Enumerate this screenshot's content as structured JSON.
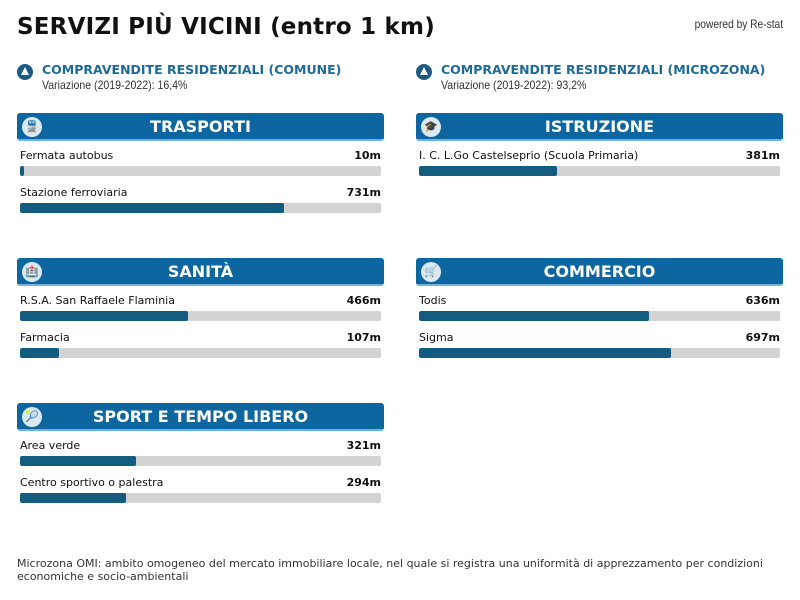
{
  "title": "SERVIZI PIÙ VICINI (entro 1 km)",
  "powered_by": "powered by Re-stat",
  "stats": [
    {
      "title": "COMPRAVENDITE RESIDENZIALI (COMUNE)",
      "value": "Variazione (2019-2022): 16,4%",
      "icon": "triangle-up-icon"
    },
    {
      "title": "COMPRAVENDITE RESIDENZIALI (MICROZONA)",
      "value": "Variazione (2019-2022): 93,2%",
      "icon": "triangle-up-icon"
    }
  ],
  "max_distance_m": 1000,
  "colors": {
    "header": "#0e66a0",
    "bar": "#145b80",
    "track": "#d3d3d3",
    "accent_text": "#1d6a98"
  },
  "sections": [
    {
      "title": "TRASPORTI",
      "icon": "train-icon",
      "glyph": "🚆",
      "items": [
        {
          "label": "Fermata autobus",
          "distance": "10m",
          "value": 10
        },
        {
          "label": "Stazione ferroviaria",
          "distance": "731m",
          "value": 731
        }
      ]
    },
    {
      "title": "ISTRUZIONE",
      "icon": "student-icon",
      "glyph": "🎓",
      "items": [
        {
          "label": "I. C. L.Go Castelseprio (Scuola Primaria)",
          "distance": "381m",
          "value": 381
        }
      ]
    },
    {
      "title": "SANITÀ",
      "icon": "hospital-icon",
      "glyph": "🏥",
      "items": [
        {
          "label": "R.S.A. San Raffaele Flaminia",
          "distance": "466m",
          "value": 466
        },
        {
          "label": "Farmacia",
          "distance": "107m",
          "value": 107
        }
      ]
    },
    {
      "title": "COMMERCIO",
      "icon": "shopping-cart-icon",
      "glyph": "🛒",
      "items": [
        {
          "label": "Todis",
          "distance": "636m",
          "value": 636
        },
        {
          "label": "Sigma",
          "distance": "697m",
          "value": 697
        }
      ]
    },
    {
      "title": "SPORT E TEMPO LIBERO",
      "icon": "tennis-racket-icon",
      "glyph": "🎾",
      "items": [
        {
          "label": "Area verde",
          "distance": "321m",
          "value": 321
        },
        {
          "label": "Centro sportivo o palestra",
          "distance": "294m",
          "value": 294
        }
      ]
    }
  ],
  "footnote": "Microzona OMI: ambito omogeneo del mercato immobiliare locale, nel quale si registra una uniformità di apprezzamento per condizioni economiche e socio-ambientali"
}
